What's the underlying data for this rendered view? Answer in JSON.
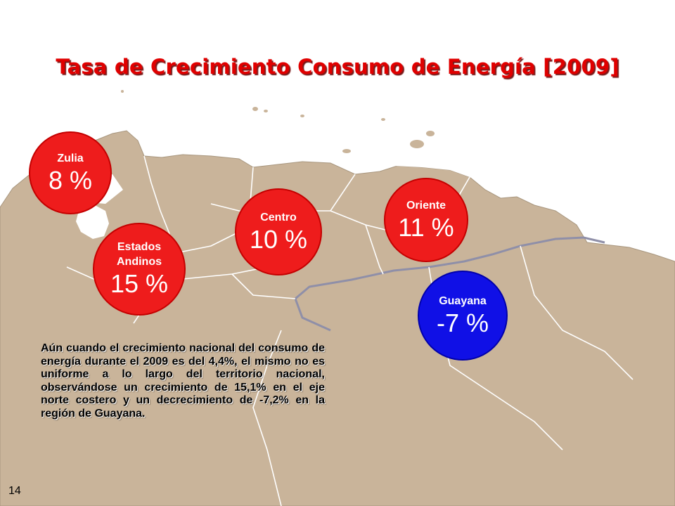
{
  "slide": {
    "title": "Tasa de Crecimiento Consumo de Energía [2009]",
    "page_number": "14"
  },
  "regions": {
    "zulia": {
      "label": "Zulia",
      "value": "8 %",
      "color": "#ee1c1c"
    },
    "andinos": {
      "label": "Estados Andinos",
      "value": "15 %",
      "color": "#ee1c1c"
    },
    "centro": {
      "label": "Centro",
      "value": "10 %",
      "color": "#ee1c1c"
    },
    "oriente": {
      "label": "Oriente",
      "value": "11 %",
      "color": "#ee1c1c"
    },
    "guayana": {
      "label": "Guayana",
      "value": "-7 %",
      "color": "#1010e6"
    }
  },
  "note": "Aún cuando el crecimiento nacional del consumo de energía durante el 2009 es del 4,4%, el mismo no es uniforme a lo largo del territorio nacional, observándose un crecimiento de 15,1% en el eje norte costero y un decrecimiento de -7,2% en la región de Guayana.",
  "colors": {
    "map_fill": "#c9b49a",
    "map_border": "#ffffff",
    "title": "#e00000"
  }
}
